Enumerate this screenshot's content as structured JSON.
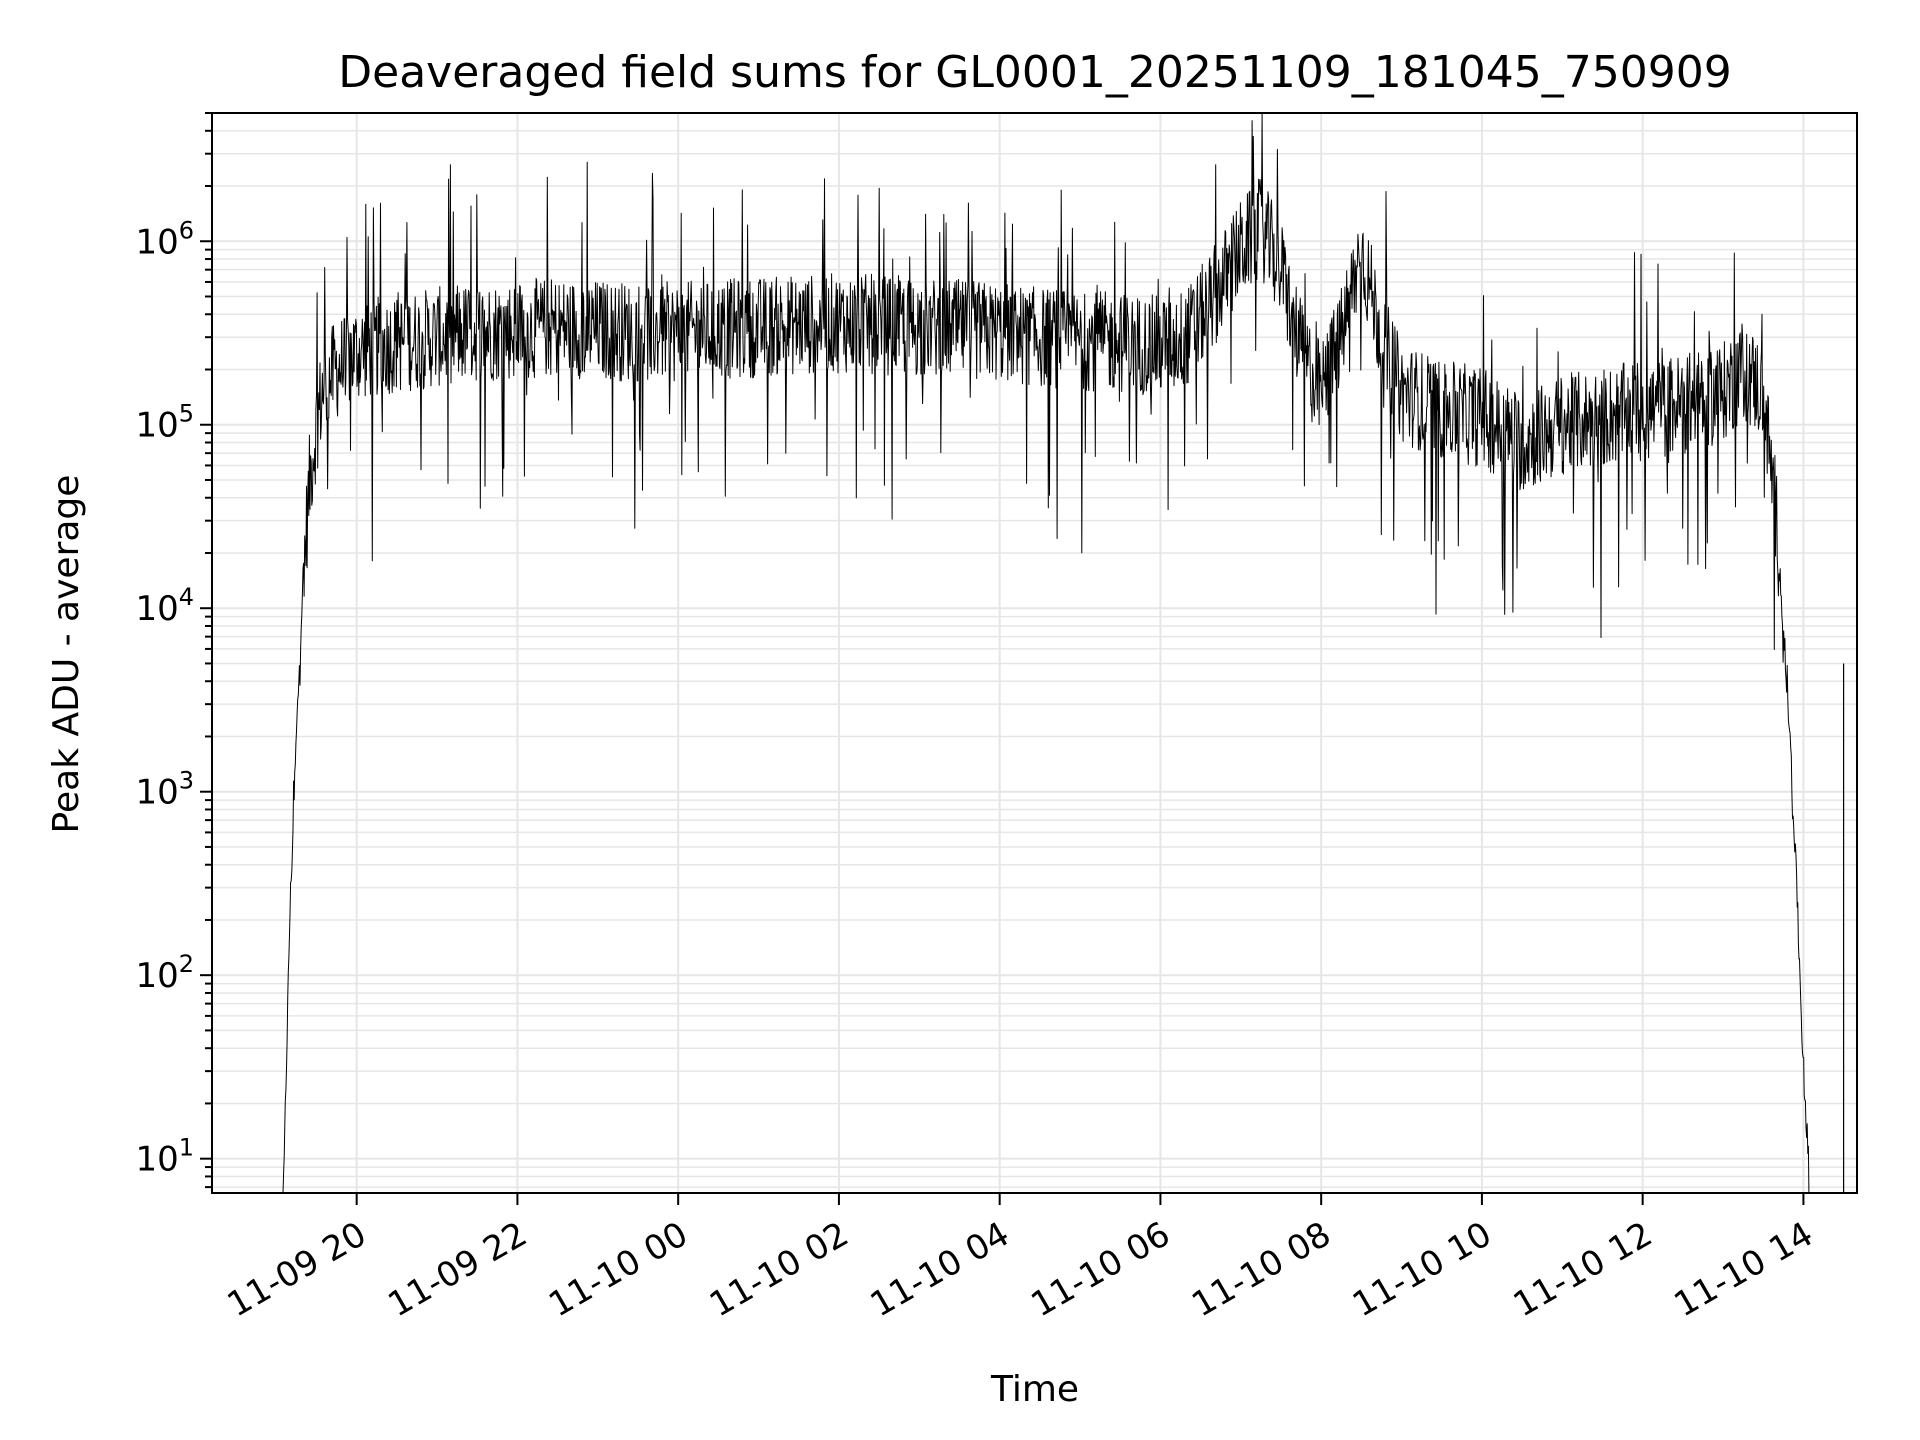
{
  "chart_data": {
    "type": "line",
    "title": "Deaveraged field sums for GL0001_20251109_181045_750909",
    "xlabel": "Time",
    "ylabel": "Peak ADU - average",
    "yscale": "log",
    "ylim": [
      6.5,
      5000000
    ],
    "xlim": [
      "2025-11-09 18:12",
      "2025-11-10 14:40"
    ],
    "grid": true,
    "line_color": "#000000",
    "grid_color": "#e6e6e6",
    "x_ticks": [
      {
        "t": "2025-11-09 20:00",
        "label": "11-09 20"
      },
      {
        "t": "2025-11-09 22:00",
        "label": "11-09 22"
      },
      {
        "t": "2025-11-10 00:00",
        "label": "11-10 00"
      },
      {
        "t": "2025-11-10 02:00",
        "label": "11-10 02"
      },
      {
        "t": "2025-11-10 04:00",
        "label": "11-10 04"
      },
      {
        "t": "2025-11-10 06:00",
        "label": "11-10 06"
      },
      {
        "t": "2025-11-10 08:00",
        "label": "11-10 08"
      },
      {
        "t": "2025-11-10 10:00",
        "label": "11-10 10"
      },
      {
        "t": "2025-11-10 12:00",
        "label": "11-10 12"
      },
      {
        "t": "2025-11-10 14:00",
        "label": "11-10 14"
      }
    ],
    "y_ticks": [
      {
        "value": 10,
        "base": "10",
        "exp": "1"
      },
      {
        "value": 100,
        "base": "10",
        "exp": "2"
      },
      {
        "value": 1000,
        "base": "10",
        "exp": "3"
      },
      {
        "value": 10000,
        "base": "10",
        "exp": "4"
      },
      {
        "value": 100000,
        "base": "10",
        "exp": "5"
      },
      {
        "value": 1000000,
        "base": "10",
        "exp": "6"
      }
    ],
    "series": [
      {
        "x": [
          "2025-11-09 19:05",
          "2025-11-09 19:10",
          "2025-11-09 19:15",
          "2025-11-09 19:20",
          "2025-11-09 19:25",
          "2025-11-09 19:30",
          "2025-11-09 19:35",
          "2025-11-09 19:45",
          "2025-11-09 20:00",
          "2025-11-09 20:30",
          "2025-11-09 21:00",
          "2025-11-09 21:30",
          "2025-11-09 22:00",
          "2025-11-09 22:30",
          "2025-11-09 23:00",
          "2025-11-09 23:30",
          "2025-11-10 00:00",
          "2025-11-10 00:30",
          "2025-11-10 01:00",
          "2025-11-10 01:30",
          "2025-11-10 02:00",
          "2025-11-10 02:30",
          "2025-11-10 03:00",
          "2025-11-10 03:30",
          "2025-11-10 04:00",
          "2025-11-10 04:30",
          "2025-11-10 05:00",
          "2025-11-10 05:30",
          "2025-11-10 06:00",
          "2025-11-10 06:20",
          "2025-11-10 06:40",
          "2025-11-10 07:00",
          "2025-11-10 07:15",
          "2025-11-10 07:30",
          "2025-11-10 07:45",
          "2025-11-10 08:00",
          "2025-11-10 08:15",
          "2025-11-10 08:30",
          "2025-11-10 08:45",
          "2025-11-10 09:00",
          "2025-11-10 09:30",
          "2025-11-10 10:00",
          "2025-11-10 10:30",
          "2025-11-10 11:00",
          "2025-11-10 11:30",
          "2025-11-10 12:00",
          "2025-11-10 12:30",
          "2025-11-10 13:00",
          "2025-11-10 13:15",
          "2025-11-10 13:30",
          "2025-11-10 13:40",
          "2025-11-10 13:50",
          "2025-11-10 13:55",
          "2025-11-10 14:00",
          "2025-11-10 14:05"
        ],
        "y": [
          5,
          200,
          2000,
          15000,
          50000,
          100000,
          160000,
          200000,
          250000,
          280000,
          300000,
          320000,
          330000,
          340000,
          330000,
          320000,
          320000,
          330000,
          340000,
          350000,
          360000,
          350000,
          340000,
          330000,
          320000,
          300000,
          290000,
          280000,
          270000,
          300000,
          500000,
          900000,
          1200000,
          700000,
          250000,
          150000,
          300000,
          900000,
          300000,
          150000,
          120000,
          110000,
          80000,
          100000,
          110000,
          120000,
          130000,
          150000,
          200000,
          150000,
          30000,
          2000,
          300,
          30,
          5
        ]
      }
    ],
    "annotations": [
      {
        "x": "2025-11-10 14:30",
        "y": 5000,
        "note": "isolated spike"
      }
    ]
  }
}
